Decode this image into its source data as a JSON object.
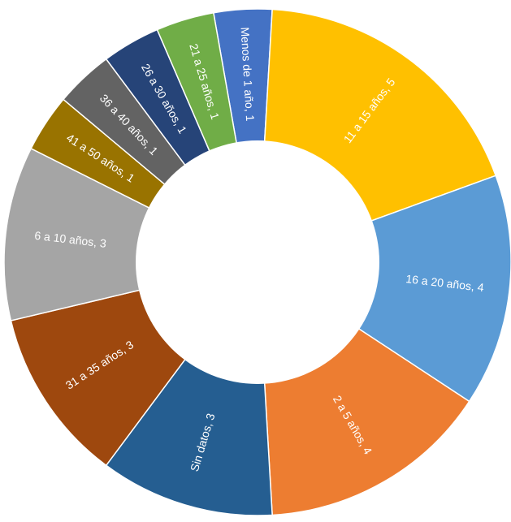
{
  "chart_data": {
    "type": "pie",
    "variant": "donut",
    "title": "",
    "slices": [
      {
        "label": "Menos de 1 año, 1",
        "category": "Menos de 1 año",
        "value": 1,
        "color": "#4472C4"
      },
      {
        "label": "11 a 15 años, 5",
        "category": "11 a 15 años",
        "value": 5,
        "color": "#FFC000"
      },
      {
        "label": "16 a 20 años, 4",
        "category": "16 a 20 años",
        "value": 4,
        "color": "#5B9BD5"
      },
      {
        "label": "2 a 5 años, 4",
        "category": "2 a 5 años",
        "value": 4,
        "color": "#ED7D31"
      },
      {
        "label": "Sin datos, 3",
        "category": "Sin datos",
        "value": 3,
        "color": "#255E91"
      },
      {
        "label": "31 a 35 años, 3",
        "category": "31 a 35 años",
        "value": 3,
        "color": "#9E480E"
      },
      {
        "label": "6 a 10 años, 3",
        "category": "6 a 10 años",
        "value": 3,
        "color": "#A5A5A5"
      },
      {
        "label": "41 a 50 años, 1",
        "category": "41 a 50 años",
        "value": 1,
        "color": "#997300"
      },
      {
        "label": "36 a 40 años, 1",
        "category": "36 a 40 años",
        "value": 1,
        "color": "#636363"
      },
      {
        "label": "26 a 30 años, 1",
        "category": "26 a 30 años",
        "value": 1,
        "color": "#264478"
      },
      {
        "label": "21 a 25 años, 1",
        "category": "21 a 25 años",
        "value": 1,
        "color": "#70AD47"
      }
    ],
    "start_angle_deg": -10,
    "direction": "clockwise",
    "label_color": "#FFFFFF",
    "legend": "none"
  }
}
